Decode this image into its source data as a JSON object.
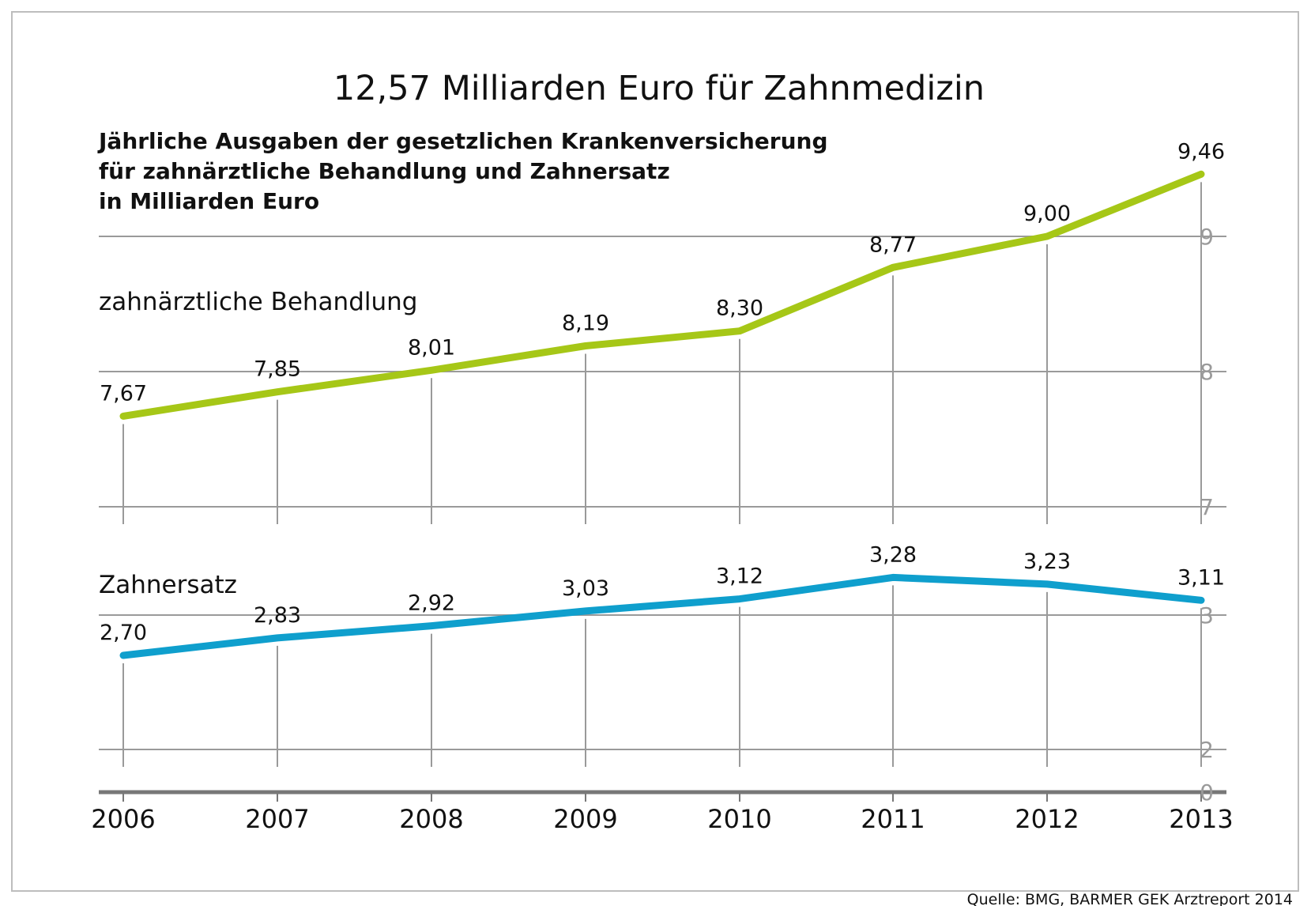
{
  "chart_data": {
    "type": "line",
    "title": "12,57 Milliarden Euro für Zahnmedizin",
    "subtitle": [
      "Jährliche Ausgaben der gesetzlichen Krankenversicherung",
      "für zahnärztliche Behandlung und Zahnersatz",
      "in Milliarden Euro"
    ],
    "x": [
      "2006",
      "2007",
      "2008",
      "2009",
      "2010",
      "2011",
      "2012",
      "2013"
    ],
    "series": [
      {
        "name": "zahnärztliche Behandlung",
        "color": "#a6c717",
        "values": [
          7.67,
          7.85,
          8.01,
          8.19,
          8.3,
          8.77,
          9.0,
          9.46
        ],
        "labels": [
          "7,67",
          "7,85",
          "8,01",
          "8,19",
          "8,30",
          "8,77",
          "9,00",
          "9,46"
        ],
        "ylim": [
          7,
          9.46
        ],
        "yticks": [
          "7",
          "8",
          "9"
        ]
      },
      {
        "name": "Zahnersatz",
        "color": "#0f9fcd",
        "values": [
          2.7,
          2.83,
          2.92,
          3.03,
          3.12,
          3.28,
          3.23,
          3.11
        ],
        "labels": [
          "2,70",
          "2,83",
          "2,92",
          "3,03",
          "3,12",
          "3,28",
          "3,23",
          "3,11"
        ],
        "ylim": [
          2,
          3.28
        ],
        "yticks": [
          "2",
          "3"
        ]
      }
    ],
    "baseline_tick": "0",
    "grid": "vertical",
    "source": "Quelle: BMG, BARMER GEK Arztreport 2014"
  }
}
